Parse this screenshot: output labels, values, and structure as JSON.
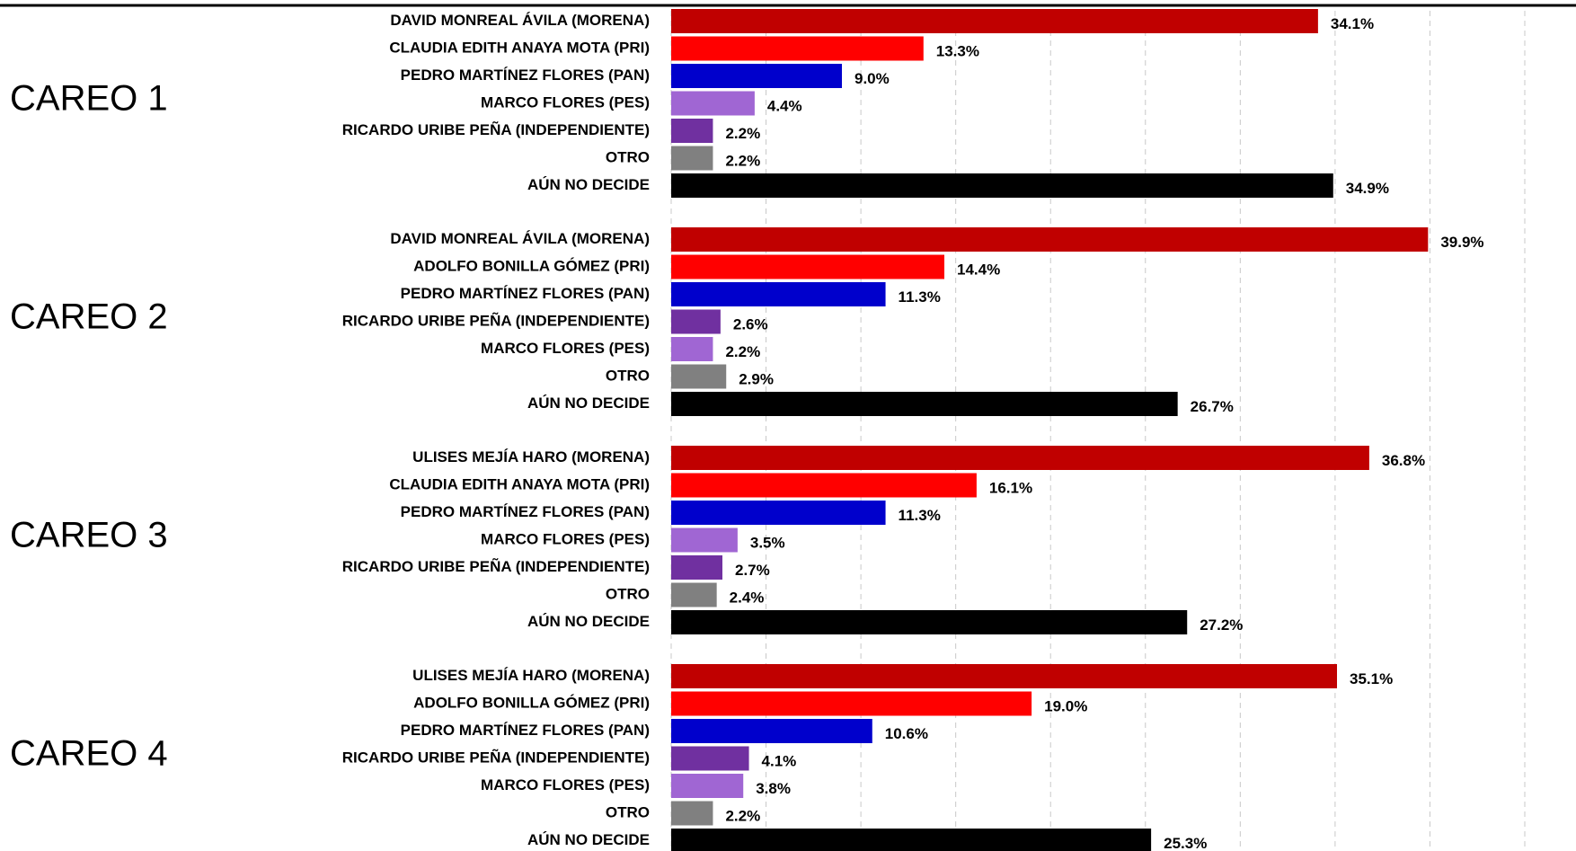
{
  "chart_data": [
    {
      "type": "bar",
      "title": "CAREO 1",
      "categories": [
        "DAVID MONREAL ÁVILA (MORENA)",
        "CLAUDIA EDITH ANAYA MOTA (PRI)",
        "PEDRO MARTÍNEZ FLORES (PAN)",
        "MARCO FLORES (PES)",
        "RICARDO URIBE PEÑA (INDEPENDIENTE)",
        "OTRO",
        "AÚN NO DECIDE"
      ],
      "values": [
        34.1,
        13.3,
        9.0,
        4.4,
        2.2,
        2.2,
        34.9
      ],
      "value_labels": [
        "34.1%",
        "13.3%",
        "9.0%",
        "4.4%",
        "2.2%",
        "2.2%",
        "34.9%"
      ],
      "colors": [
        "#c00000",
        "#ff0000",
        "#0000cc",
        "#a066d3",
        "#7030a0",
        "#808080",
        "#000000"
      ],
      "xlim": [
        0,
        47.7
      ],
      "xticks": [
        0,
        5,
        10,
        15,
        20,
        25,
        30,
        35,
        40,
        45
      ],
      "grid": true
    },
    {
      "type": "bar",
      "title": "CAREO 2",
      "categories": [
        "DAVID MONREAL ÁVILA (MORENA)",
        "ADOLFO BONILLA GÓMEZ (PRI)",
        "PEDRO MARTÍNEZ FLORES (PAN)",
        "RICARDO URIBE PEÑA (INDEPENDIENTE)",
        "MARCO FLORES (PES)",
        "OTRO",
        "AÚN NO DECIDE"
      ],
      "values": [
        39.9,
        14.4,
        11.3,
        2.6,
        2.2,
        2.9,
        26.7
      ],
      "value_labels": [
        "39.9%",
        "14.4%",
        "11.3%",
        "2.6%",
        "2.2%",
        "2.9%",
        "26.7%"
      ],
      "colors": [
        "#c00000",
        "#ff0000",
        "#0000cc",
        "#7030a0",
        "#a066d3",
        "#808080",
        "#000000"
      ],
      "xlim": [
        0,
        47.7
      ],
      "xticks": [
        0,
        5,
        10,
        15,
        20,
        25,
        30,
        35,
        40,
        45
      ],
      "grid": true
    },
    {
      "type": "bar",
      "title": "CAREO 3",
      "categories": [
        "ULISES MEJÍA HARO (MORENA)",
        "CLAUDIA EDITH ANAYA MOTA (PRI)",
        "PEDRO MARTÍNEZ FLORES (PAN)",
        "MARCO FLORES (PES)",
        "RICARDO URIBE PEÑA (INDEPENDIENTE)",
        "OTRO",
        "AÚN NO DECIDE"
      ],
      "values": [
        36.8,
        16.1,
        11.3,
        3.5,
        2.7,
        2.4,
        27.2
      ],
      "value_labels": [
        "36.8%",
        "16.1%",
        "11.3%",
        "3.5%",
        "2.7%",
        "2.4%",
        "27.2%"
      ],
      "colors": [
        "#c00000",
        "#ff0000",
        "#0000cc",
        "#a066d3",
        "#7030a0",
        "#808080",
        "#000000"
      ],
      "xlim": [
        0,
        47.7
      ],
      "xticks": [
        0,
        5,
        10,
        15,
        20,
        25,
        30,
        35,
        40,
        45
      ],
      "grid": true
    },
    {
      "type": "bar",
      "title": "CAREO 4",
      "categories": [
        "ULISES MEJÍA HARO (MORENA)",
        "ADOLFO BONILLA GÓMEZ (PRI)",
        "PEDRO MARTÍNEZ FLORES (PAN)",
        "RICARDO URIBE PEÑA (INDEPENDIENTE)",
        "MARCO FLORES (PES)",
        "OTRO",
        "AÚN NO DECIDE"
      ],
      "values": [
        35.1,
        19.0,
        10.6,
        4.1,
        3.8,
        2.2,
        25.3
      ],
      "value_labels": [
        "35.1%",
        "19.0%",
        "10.6%",
        "4.1%",
        "3.8%",
        "2.2%",
        "25.3%"
      ],
      "colors": [
        "#c00000",
        "#ff0000",
        "#0000cc",
        "#7030a0",
        "#a066d3",
        "#808080",
        "#000000"
      ],
      "xlim": [
        0,
        47.7
      ],
      "xticks": [
        0,
        5,
        10,
        15,
        20,
        25,
        30,
        35,
        40,
        45
      ],
      "grid": true
    }
  ]
}
